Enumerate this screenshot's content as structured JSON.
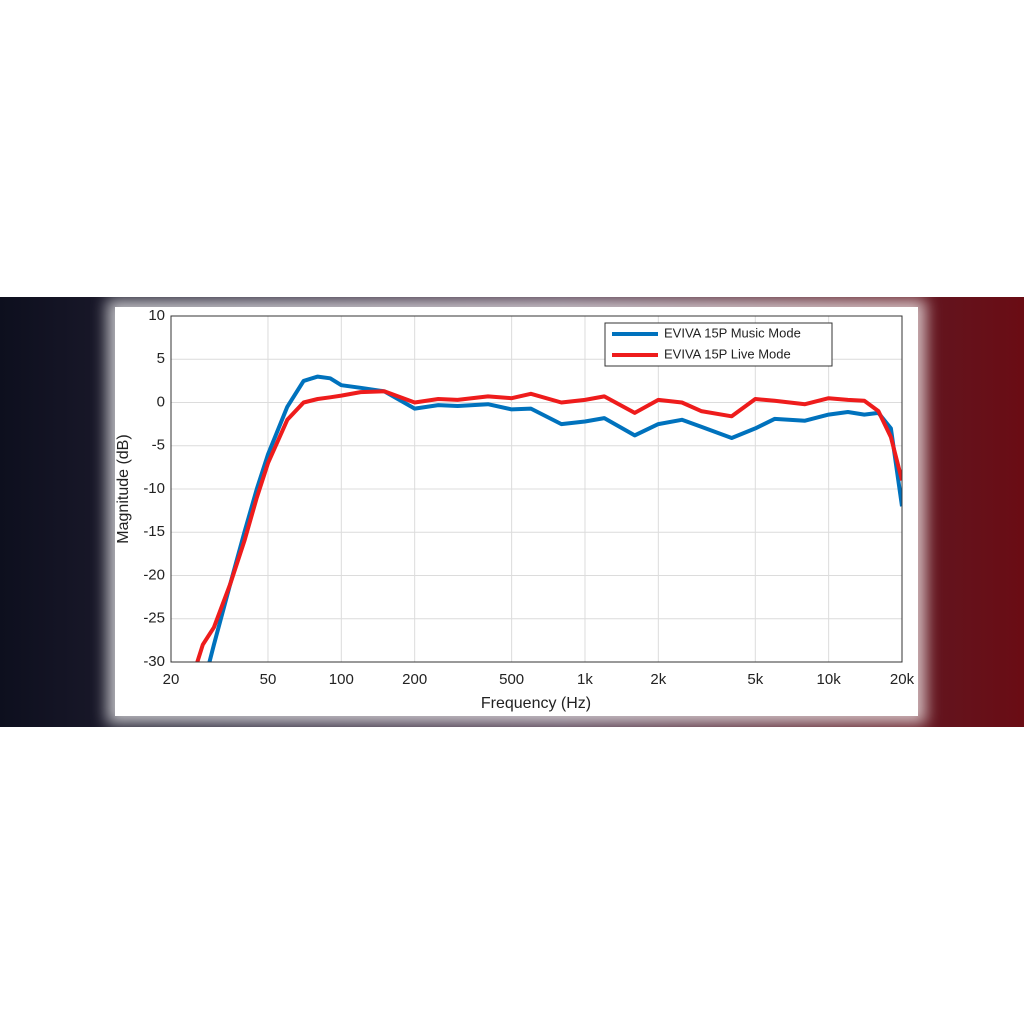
{
  "chart_data": {
    "type": "line",
    "x_label": "Frequency (Hz)",
    "y_label": "Magnitude (dB)",
    "x": [
      25,
      27,
      30,
      35,
      40,
      45,
      50,
      60,
      70,
      80,
      90,
      100,
      120,
      150,
      200,
      250,
      300,
      400,
      500,
      600,
      800,
      1000,
      1200,
      1600,
      2000,
      2500,
      3000,
      4000,
      5000,
      6000,
      8000,
      10000,
      12000,
      14000,
      16000,
      18000,
      20000
    ],
    "series": [
      {
        "name": "EVIVA 15P Music Mode",
        "color": "#0072bd",
        "values": [
          null,
          -33,
          -28,
          -21,
          -15,
          -10,
          -6,
          -0.5,
          2.5,
          3,
          2.8,
          2.0,
          1.7,
          1.3,
          -0.7,
          -0.3,
          -0.4,
          -0.2,
          -0.8,
          -0.7,
          -2.5,
          -2.2,
          -1.8,
          -3.8,
          -2.5,
          -2.0,
          -2.8,
          -4.1,
          -3.0,
          -1.9,
          -2.1,
          -1.4,
          -1.1,
          -1.4,
          -1.2,
          -3,
          -12
        ]
      },
      {
        "name": "EVIVA 15P Live Mode",
        "color": "#ee1c1c",
        "values": [
          -31,
          -28,
          -26,
          -21,
          -16,
          -11,
          -7,
          -2,
          0,
          0.4,
          0.6,
          0.8,
          1.2,
          1.3,
          0,
          0.4,
          0.3,
          0.7,
          0.5,
          1.0,
          0.0,
          0.3,
          0.7,
          -1.2,
          0.3,
          0.0,
          -1.0,
          -1.6,
          0.4,
          0.2,
          -0.2,
          0.5,
          0.3,
          0.2,
          -1,
          -4,
          -9
        ]
      }
    ],
    "xlim": [
      20,
      20000
    ],
    "log_x": true,
    "xticks": [
      20,
      50,
      100,
      200,
      500,
      {
        "value": 1000,
        "label": "1k"
      },
      {
        "value": 2000,
        "label": "2k"
      },
      {
        "value": 5000,
        "label": "5k"
      },
      {
        "value": 10000,
        "label": "10k"
      },
      {
        "value": 20000,
        "label": "20k"
      }
    ],
    "ylim": [
      -30,
      10
    ],
    "yticks": [
      -30,
      -25,
      -20,
      -15,
      -10,
      -5,
      0,
      5,
      10
    ],
    "grid": true,
    "legend": "top-right"
  }
}
